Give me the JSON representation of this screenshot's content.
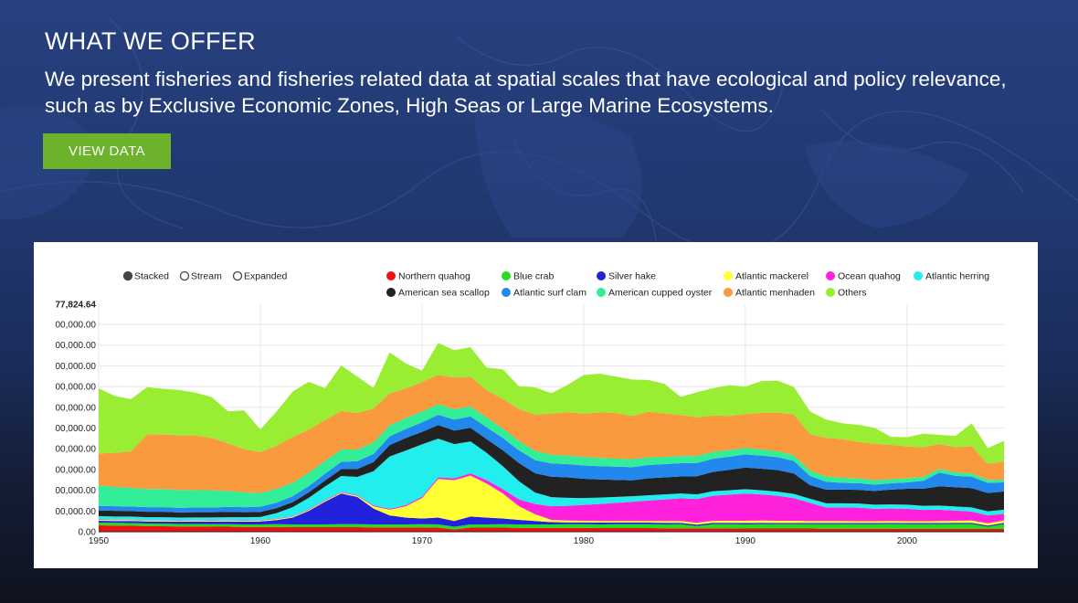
{
  "hero": {
    "title": "WHAT WE OFFER",
    "text": "We present fisheries and fisheries related data at spatial scales that have ecological and policy relevance, such as by Exclusive Economic Zones, High Seas or Large Marine Ecosystems.",
    "button_label": "VIEW DATA"
  },
  "colors": {
    "button": "#6cb32b",
    "background": "#213870",
    "panel": "#ffffff"
  },
  "chart_data": {
    "type": "area",
    "stacked": true,
    "controls": [
      {
        "label": "Stacked",
        "selected": true
      },
      {
        "label": "Stream",
        "selected": false
      },
      {
        "label": "Expanded",
        "selected": false
      }
    ],
    "legend_position": "top",
    "x": [
      1950,
      1951,
      1952,
      1953,
      1954,
      1955,
      1956,
      1957,
      1958,
      1959,
      1960,
      1961,
      1962,
      1963,
      1964,
      1965,
      1966,
      1967,
      1968,
      1969,
      1970,
      1971,
      1972,
      1973,
      1974,
      1975,
      1976,
      1977,
      1978,
      1979,
      1980,
      1981,
      1982,
      1983,
      1984,
      1985,
      1986,
      1987,
      1988,
      1989,
      1990,
      1991,
      1992,
      1993,
      1994,
      1995,
      1996,
      1997,
      1998,
      1999,
      2000,
      2001,
      2002,
      2003,
      2004,
      2005,
      2006
    ],
    "xticks": [
      "1950",
      "1960",
      "1970",
      "1980",
      "1990",
      "2000"
    ],
    "yticks": [
      "0.00",
      "00,000.00",
      "00,000.00",
      "00,000.00",
      "00,000.00",
      "00,000.00",
      "00,000.00",
      "00,000.00",
      "00,000.00",
      "00,000.00",
      "00,000.00"
    ],
    "ymax_label": "77,824.64",
    "ylim": [
      0,
      1.0
    ],
    "series": [
      {
        "name": "Northern quahog",
        "color": "#ee1111",
        "values": [
          0.028,
          0.027,
          0.026,
          0.025,
          0.024,
          0.023,
          0.023,
          0.022,
          0.022,
          0.021,
          0.021,
          0.021,
          0.02,
          0.02,
          0.02,
          0.02,
          0.02,
          0.019,
          0.019,
          0.019,
          0.019,
          0.018,
          0.01,
          0.018,
          0.018,
          0.018,
          0.017,
          0.017,
          0.017,
          0.017,
          0.017,
          0.016,
          0.016,
          0.016,
          0.016,
          0.015,
          0.015,
          0.015,
          0.015,
          0.015,
          0.014,
          0.014,
          0.014,
          0.014,
          0.014,
          0.013,
          0.013,
          0.013,
          0.013,
          0.013,
          0.012,
          0.012,
          0.012,
          0.012,
          0.012,
          0.012,
          0.012
        ]
      },
      {
        "name": "Blue crab",
        "color": "#22dd22",
        "values": [
          0.012,
          0.012,
          0.012,
          0.011,
          0.011,
          0.011,
          0.011,
          0.011,
          0.011,
          0.011,
          0.011,
          0.012,
          0.012,
          0.012,
          0.012,
          0.013,
          0.013,
          0.013,
          0.013,
          0.013,
          0.014,
          0.014,
          0.012,
          0.014,
          0.014,
          0.015,
          0.015,
          0.015,
          0.015,
          0.016,
          0.016,
          0.016,
          0.017,
          0.017,
          0.017,
          0.017,
          0.018,
          0.01,
          0.018,
          0.018,
          0.018,
          0.019,
          0.019,
          0.019,
          0.019,
          0.02,
          0.02,
          0.02,
          0.02,
          0.021,
          0.021,
          0.021,
          0.021,
          0.022,
          0.022,
          0.01,
          0.022
        ]
      },
      {
        "name": "Silver hake",
        "color": "#2222dd",
        "values": [
          0.008,
          0.008,
          0.009,
          0.009,
          0.01,
          0.01,
          0.011,
          0.011,
          0.012,
          0.012,
          0.013,
          0.018,
          0.03,
          0.06,
          0.1,
          0.135,
          0.12,
          0.07,
          0.04,
          0.03,
          0.025,
          0.03,
          0.025,
          0.035,
          0.03,
          0.025,
          0.02,
          0.015,
          0.01,
          0.008,
          0.008,
          0.008,
          0.007,
          0.007,
          0.007,
          0.007,
          0.006,
          0.006,
          0.006,
          0.006,
          0.006,
          0.006,
          0.005,
          0.005,
          0.005,
          0.005,
          0.005,
          0.005,
          0.005,
          0.005,
          0.005,
          0.005,
          0.005,
          0.005,
          0.005,
          0.005,
          0.005
        ]
      },
      {
        "name": "Atlantic mackerel",
        "color": "#ffff33",
        "values": [
          0.004,
          0.004,
          0.004,
          0.004,
          0.004,
          0.004,
          0.004,
          0.004,
          0.004,
          0.004,
          0.004,
          0.004,
          0.004,
          0.004,
          0.004,
          0.004,
          0.005,
          0.01,
          0.025,
          0.05,
          0.09,
          0.17,
          0.18,
          0.18,
          0.15,
          0.11,
          0.06,
          0.03,
          0.01,
          0.008,
          0.007,
          0.007,
          0.007,
          0.007,
          0.007,
          0.008,
          0.008,
          0.008,
          0.009,
          0.009,
          0.01,
          0.01,
          0.01,
          0.01,
          0.009,
          0.009,
          0.009,
          0.008,
          0.008,
          0.008,
          0.008,
          0.008,
          0.009,
          0.009,
          0.01,
          0.01,
          0.01
        ]
      },
      {
        "name": "Ocean quahog",
        "color": "#ff22dd",
        "values": [
          0.002,
          0.002,
          0.002,
          0.002,
          0.002,
          0.002,
          0.002,
          0.002,
          0.002,
          0.002,
          0.002,
          0.002,
          0.002,
          0.003,
          0.003,
          0.003,
          0.003,
          0.004,
          0.004,
          0.005,
          0.006,
          0.007,
          0.008,
          0.01,
          0.015,
          0.02,
          0.03,
          0.045,
          0.06,
          0.065,
          0.07,
          0.075,
          0.08,
          0.085,
          0.09,
          0.095,
          0.1,
          0.105,
          0.11,
          0.115,
          0.12,
          0.115,
          0.11,
          0.1,
          0.08,
          0.06,
          0.06,
          0.06,
          0.055,
          0.055,
          0.055,
          0.05,
          0.05,
          0.045,
          0.04,
          0.035,
          0.03
        ]
      },
      {
        "name": "Atlantic herring",
        "color": "#22eeee",
        "values": [
          0.015,
          0.014,
          0.014,
          0.013,
          0.013,
          0.012,
          0.012,
          0.013,
          0.013,
          0.014,
          0.014,
          0.025,
          0.04,
          0.05,
          0.06,
          0.07,
          0.08,
          0.15,
          0.23,
          0.24,
          0.23,
          0.17,
          0.15,
          0.14,
          0.12,
          0.1,
          0.08,
          0.05,
          0.04,
          0.035,
          0.03,
          0.028,
          0.026,
          0.024,
          0.023,
          0.022,
          0.021,
          0.02,
          0.02,
          0.019,
          0.019,
          0.018,
          0.018,
          0.018,
          0.018,
          0.018,
          0.018,
          0.018,
          0.018,
          0.018,
          0.018,
          0.018,
          0.018,
          0.018,
          0.018,
          0.018,
          0.018
        ]
      },
      {
        "name": "American sea scallop",
        "color": "#222222",
        "values": [
          0.025,
          0.025,
          0.024,
          0.024,
          0.024,
          0.023,
          0.023,
          0.023,
          0.023,
          0.022,
          0.022,
          0.022,
          0.022,
          0.024,
          0.026,
          0.03,
          0.035,
          0.04,
          0.05,
          0.055,
          0.055,
          0.06,
          0.06,
          0.06,
          0.06,
          0.07,
          0.08,
          0.085,
          0.09,
          0.09,
          0.085,
          0.08,
          0.075,
          0.07,
          0.075,
          0.075,
          0.075,
          0.08,
          0.085,
          0.09,
          0.095,
          0.095,
          0.095,
          0.09,
          0.06,
          0.06,
          0.06,
          0.06,
          0.06,
          0.065,
          0.07,
          0.075,
          0.085,
          0.085,
          0.085,
          0.08,
          0.08
        ]
      },
      {
        "name": "Atlantic surf clam",
        "color": "#2288ee",
        "values": [
          0.02,
          0.02,
          0.02,
          0.02,
          0.02,
          0.02,
          0.021,
          0.021,
          0.022,
          0.022,
          0.023,
          0.024,
          0.026,
          0.028,
          0.03,
          0.032,
          0.034,
          0.036,
          0.038,
          0.04,
          0.042,
          0.045,
          0.048,
          0.05,
          0.052,
          0.054,
          0.056,
          0.058,
          0.058,
          0.058,
          0.058,
          0.058,
          0.058,
          0.058,
          0.058,
          0.058,
          0.058,
          0.058,
          0.058,
          0.058,
          0.058,
          0.058,
          0.057,
          0.055,
          0.04,
          0.035,
          0.03,
          0.03,
          0.028,
          0.028,
          0.028,
          0.035,
          0.06,
          0.05,
          0.05,
          0.045,
          0.04
        ]
      },
      {
        "name": "American cupped oyster",
        "color": "#33ee99",
        "values": [
          0.09,
          0.085,
          0.082,
          0.08,
          0.08,
          0.078,
          0.076,
          0.075,
          0.07,
          0.065,
          0.06,
          0.06,
          0.06,
          0.058,
          0.056,
          0.054,
          0.052,
          0.05,
          0.049,
          0.048,
          0.047,
          0.046,
          0.045,
          0.044,
          0.043,
          0.042,
          0.041,
          0.04,
          0.039,
          0.038,
          0.038,
          0.037,
          0.036,
          0.035,
          0.034,
          0.033,
          0.032,
          0.031,
          0.03,
          0.029,
          0.028,
          0.027,
          0.026,
          0.025,
          0.024,
          0.023,
          0.022,
          0.021,
          0.02,
          0.019,
          0.018,
          0.017,
          0.016,
          0.015,
          0.014,
          0.013,
          0.012
        ]
      },
      {
        "name": "Atlantic menhaden",
        "color": "#f99a3f",
        "values": [
          0.14,
          0.15,
          0.16,
          0.24,
          0.24,
          0.24,
          0.24,
          0.23,
          0.21,
          0.19,
          0.18,
          0.19,
          0.2,
          0.19,
          0.18,
          0.17,
          0.16,
          0.15,
          0.14,
          0.13,
          0.13,
          0.13,
          0.14,
          0.13,
          0.12,
          0.13,
          0.14,
          0.16,
          0.18,
          0.19,
          0.19,
          0.2,
          0.2,
          0.19,
          0.2,
          0.19,
          0.18,
          0.17,
          0.16,
          0.15,
          0.15,
          0.16,
          0.17,
          0.18,
          0.16,
          0.17,
          0.17,
          0.16,
          0.16,
          0.15,
          0.14,
          0.13,
          0.11,
          0.11,
          0.12,
          0.07,
          0.08
        ]
      },
      {
        "name": "Others",
        "color": "#99ee33",
        "values": [
          0.286,
          0.25,
          0.23,
          0.208,
          0.2,
          0.2,
          0.188,
          0.18,
          0.14,
          0.17,
          0.1,
          0.15,
          0.2,
          0.21,
          0.14,
          0.2,
          0.16,
          0.09,
          0.18,
          0.11,
          0.05,
          0.14,
          0.12,
          0.13,
          0.1,
          0.13,
          0.1,
          0.12,
          0.09,
          0.12,
          0.17,
          0.17,
          0.16,
          0.16,
          0.14,
          0.13,
          0.08,
          0.11,
          0.12,
          0.135,
          0.12,
          0.14,
          0.14,
          0.12,
          0.1,
          0.08,
          0.07,
          0.075,
          0.07,
          0.035,
          0.04,
          0.06,
          0.04,
          0.05,
          0.1,
          0.07,
          0.09
        ]
      }
    ]
  }
}
